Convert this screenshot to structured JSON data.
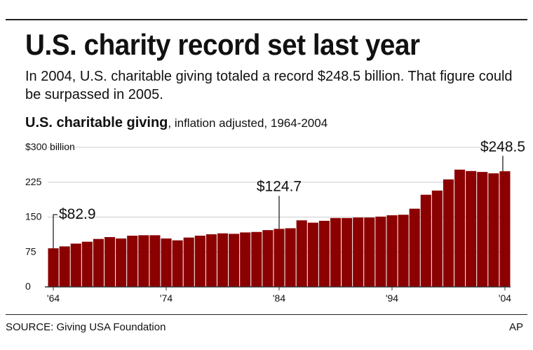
{
  "header": {
    "title": "U.S. charity record set last year",
    "intro": "In 2004, U.S. charitable giving totaled a record $248.5 billion. That figure could be surpassed in 2005."
  },
  "chart_data": {
    "type": "bar",
    "title": "U.S. charitable giving",
    "subtitle": ", inflation adjusted, 1964-2004",
    "xlabel": "",
    "ylabel": "",
    "ylim": [
      0,
      300
    ],
    "yticks": [
      {
        "value": 0,
        "label": "0"
      },
      {
        "value": 75,
        "label": "75"
      },
      {
        "value": 150,
        "label": "150"
      },
      {
        "value": 225,
        "label": "225"
      },
      {
        "value": 300,
        "label": "$300 billion"
      }
    ],
    "xticks": [
      {
        "year": 1964,
        "label": "'64"
      },
      {
        "year": 1974,
        "label": "'74"
      },
      {
        "year": 1984,
        "label": "'84"
      },
      {
        "year": 1994,
        "label": "'94"
      },
      {
        "year": 2004,
        "label": "'04"
      }
    ],
    "grid": true,
    "categories": [
      1964,
      1965,
      1966,
      1967,
      1968,
      1969,
      1970,
      1971,
      1972,
      1973,
      1974,
      1975,
      1976,
      1977,
      1978,
      1979,
      1980,
      1981,
      1982,
      1983,
      1984,
      1985,
      1986,
      1987,
      1988,
      1989,
      1990,
      1991,
      1992,
      1993,
      1994,
      1995,
      1996,
      1997,
      1998,
      1999,
      2000,
      2001,
      2002,
      2003,
      2004
    ],
    "values": [
      82.9,
      87,
      93,
      97,
      103,
      107,
      104,
      110,
      111,
      111,
      104,
      100,
      106,
      110,
      113,
      115,
      114,
      117,
      118,
      122,
      124.7,
      126,
      143,
      138,
      142,
      148,
      148,
      149,
      149,
      151,
      154,
      155,
      168,
      198,
      207,
      231,
      252,
      249,
      247,
      244,
      248.5
    ],
    "annotations": [
      {
        "year": 1964,
        "label": "$82.9"
      },
      {
        "year": 1984,
        "label": "$124.7"
      },
      {
        "year": 2004,
        "label": "$248.5"
      }
    ],
    "bar_color": "#8b0000"
  },
  "footer": {
    "source": "SOURCE: Giving USA Foundation",
    "credit": "AP"
  }
}
